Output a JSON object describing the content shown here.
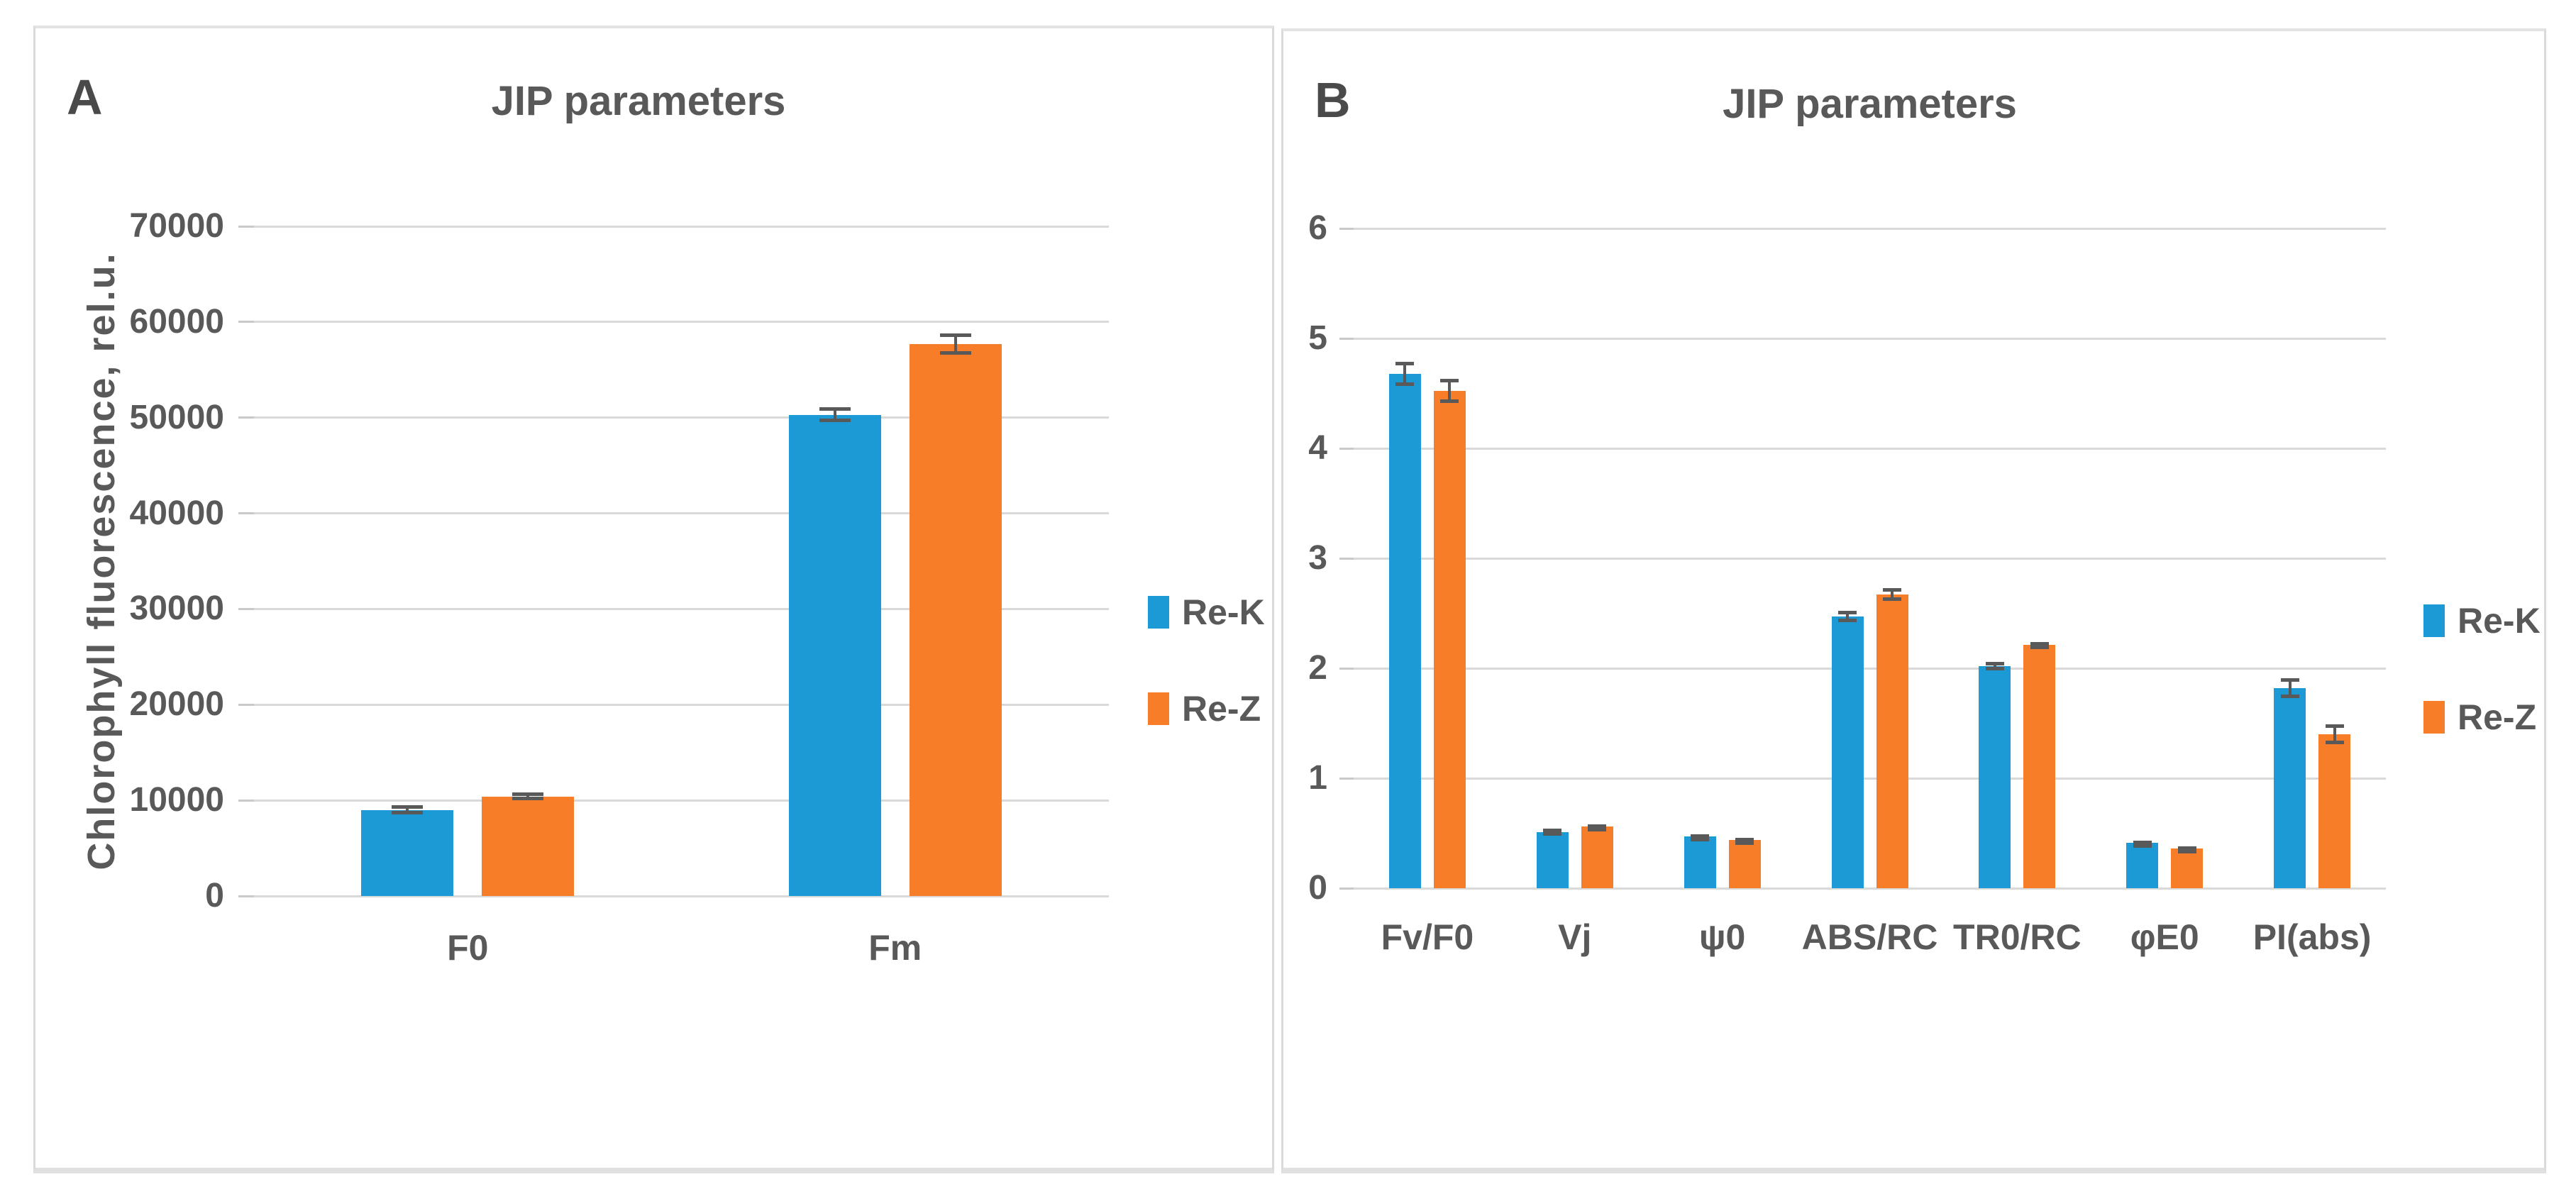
{
  "page": {
    "background": "#ffffff"
  },
  "colors": {
    "series_re_k": "#1B9AD6",
    "series_re_z": "#F87D28",
    "text": "#595959",
    "panel_label": "#4A4A4A",
    "gridline": "#D9D9D9",
    "tick": "#C9C9C9",
    "error_bar": "#595959",
    "panel_border": "#DADADA"
  },
  "chart_data": [
    {
      "panel_label": "A",
      "type": "bar",
      "title": "JIP parameters",
      "ylabel": "Chlorophyll fluorescence, rel.u.",
      "ylim": [
        0,
        70000
      ],
      "ytick_step": 10000,
      "ytick_labels": [
        "0",
        "10000",
        "20000",
        "30000",
        "40000",
        "50000",
        "60000",
        "70000"
      ],
      "grid": true,
      "legend_position": "right",
      "categories": [
        "F0",
        "Fm"
      ],
      "series": [
        {
          "name": "Re-K",
          "color": "#1B9AD6",
          "values": [
            9000,
            50300
          ],
          "errors": [
            500,
            800
          ]
        },
        {
          "name": "Re-Z",
          "color": "#F87D28",
          "values": [
            10400,
            57700
          ],
          "errors": [
            400,
            1100
          ]
        }
      ]
    },
    {
      "panel_label": "B",
      "type": "bar",
      "title": "JIP parameters",
      "ylabel": "",
      "ylim": [
        0,
        6
      ],
      "ytick_step": 1,
      "ytick_labels": [
        "0",
        "1",
        "2",
        "3",
        "4",
        "5",
        "6"
      ],
      "grid": true,
      "legend_position": "right",
      "categories": [
        "Fv/F0",
        "Vj",
        "ψ0",
        "ABS/RC",
        "TR0/RC",
        "φE0",
        "PI(abs)"
      ],
      "series": [
        {
          "name": "Re-K",
          "color": "#1B9AD6",
          "values": [
            4.68,
            0.51,
            0.47,
            2.47,
            2.02,
            0.41,
            1.82
          ],
          "errors": [
            0.11,
            0.03,
            0.02,
            0.05,
            0.04,
            0.02,
            0.09
          ]
        },
        {
          "name": "Re-Z",
          "color": "#F87D28",
          "values": [
            4.52,
            0.56,
            0.44,
            2.67,
            2.21,
            0.36,
            1.4
          ],
          "errors": [
            0.11,
            0.02,
            0.02,
            0.06,
            0.03,
            0.02,
            0.09
          ]
        }
      ]
    }
  ],
  "legend": {
    "items": [
      {
        "label": "Re-K",
        "color": "#1B9AD6"
      },
      {
        "label": "Re-Z",
        "color": "#F87D28"
      }
    ]
  }
}
